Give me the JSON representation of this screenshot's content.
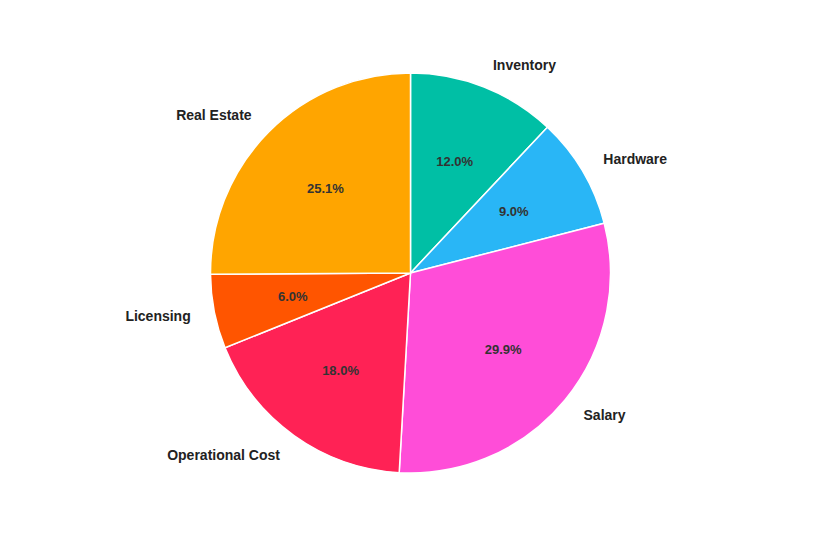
{
  "chart_data": {
    "type": "pie",
    "categories": [
      "Inventory",
      "Hardware",
      "Salary",
      "Operational Cost",
      "Licensing",
      "Real Estate"
    ],
    "values": [
      12.0,
      9.0,
      29.9,
      18.0,
      6.0,
      25.1
    ],
    "value_labels": [
      "12.0%",
      "9.0%",
      "29.9%",
      "18.0%",
      "6.0%",
      "25.1%"
    ],
    "colors": [
      "#00BFA5",
      "#29B6F6",
      "#FF4DD8",
      "#FF2255",
      "#FF5500",
      "#FFA500"
    ],
    "data_labels": true
  }
}
